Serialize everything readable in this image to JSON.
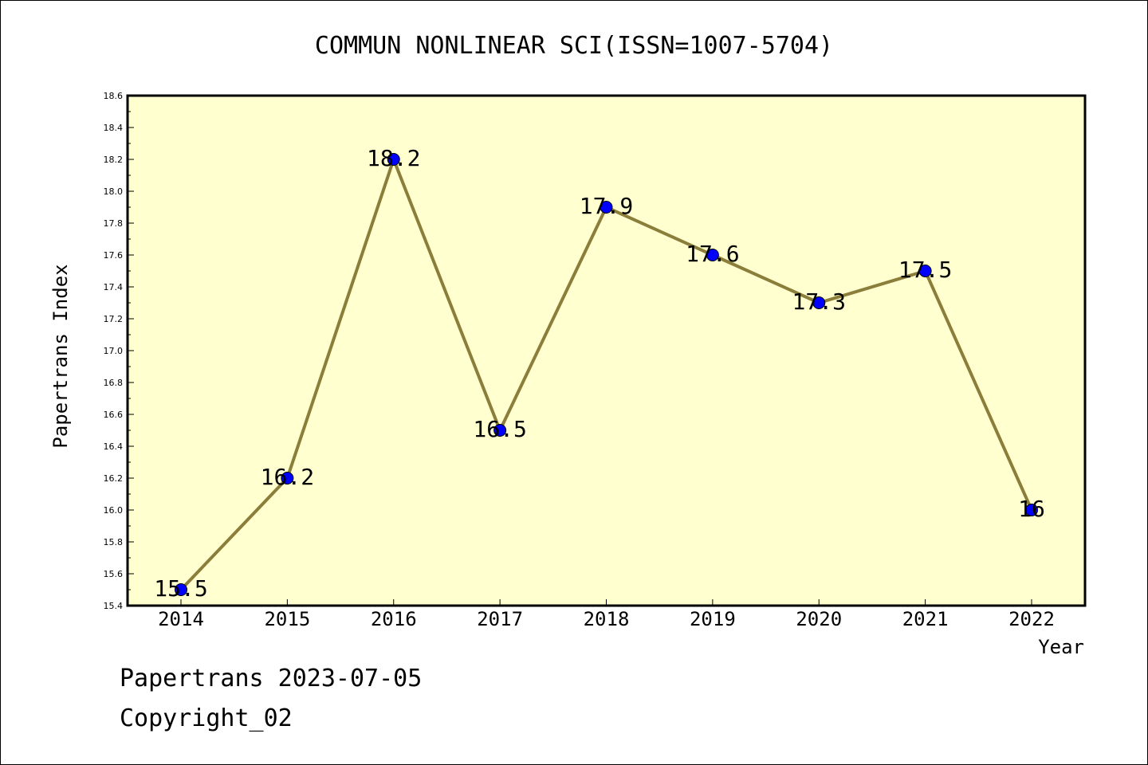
{
  "chart_data": {
    "type": "line",
    "title": "COMMUN NONLINEAR SCI(ISSN=1007-5704)",
    "xlabel": "Year",
    "ylabel": "Papertrans Index",
    "x": [
      "2014",
      "2015",
      "2016",
      "2017",
      "2018",
      "2019",
      "2020",
      "2021",
      "2022"
    ],
    "series": [
      {
        "values": [
          15.5,
          16.2,
          18.2,
          16.5,
          17.9,
          17.6,
          17.3,
          17.5,
          16
        ],
        "labels": [
          "15.5",
          "16.2",
          "18.2",
          "16.5",
          "17.9",
          "17.6",
          "17.3",
          "17.5",
          "16"
        ],
        "color": "#8b7d3a",
        "marker_color": "#0000ff"
      }
    ],
    "ylim": [
      15.4,
      18.6
    ],
    "yticks": [
      "15.4",
      "15.6",
      "15.8",
      "16.0",
      "16.2",
      "16.4",
      "16.6",
      "16.8",
      "17.0",
      "17.2",
      "17.4",
      "17.6",
      "17.8",
      "18.0",
      "18.2",
      "18.4",
      "18.6"
    ],
    "plot_background": "#ffffd0",
    "grid": false,
    "legend": "none"
  },
  "footer": {
    "line1": "Papertrans 2023-07-05",
    "line2": "Copyright_02"
  }
}
